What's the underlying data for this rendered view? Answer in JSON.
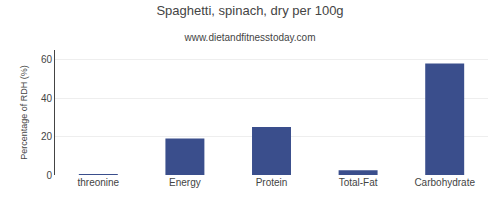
{
  "chart_data": {
    "type": "bar",
    "title": "Spaghetti, spinach, dry per 100g",
    "subtitle": "www.dietandfitnesstoday.com",
    "categories": [
      "threonine",
      "Energy",
      "Protein",
      "Total-Fat",
      "Carbohydrate"
    ],
    "values": [
      0.4,
      19.0,
      25.0,
      2.5,
      58.0
    ],
    "color": "#3a4e8c",
    "ylabel": "Percentage of RDH (%)",
    "ylim": [
      0,
      65
    ],
    "yticks": [
      0,
      20,
      40,
      60
    ],
    "grid": true
  }
}
